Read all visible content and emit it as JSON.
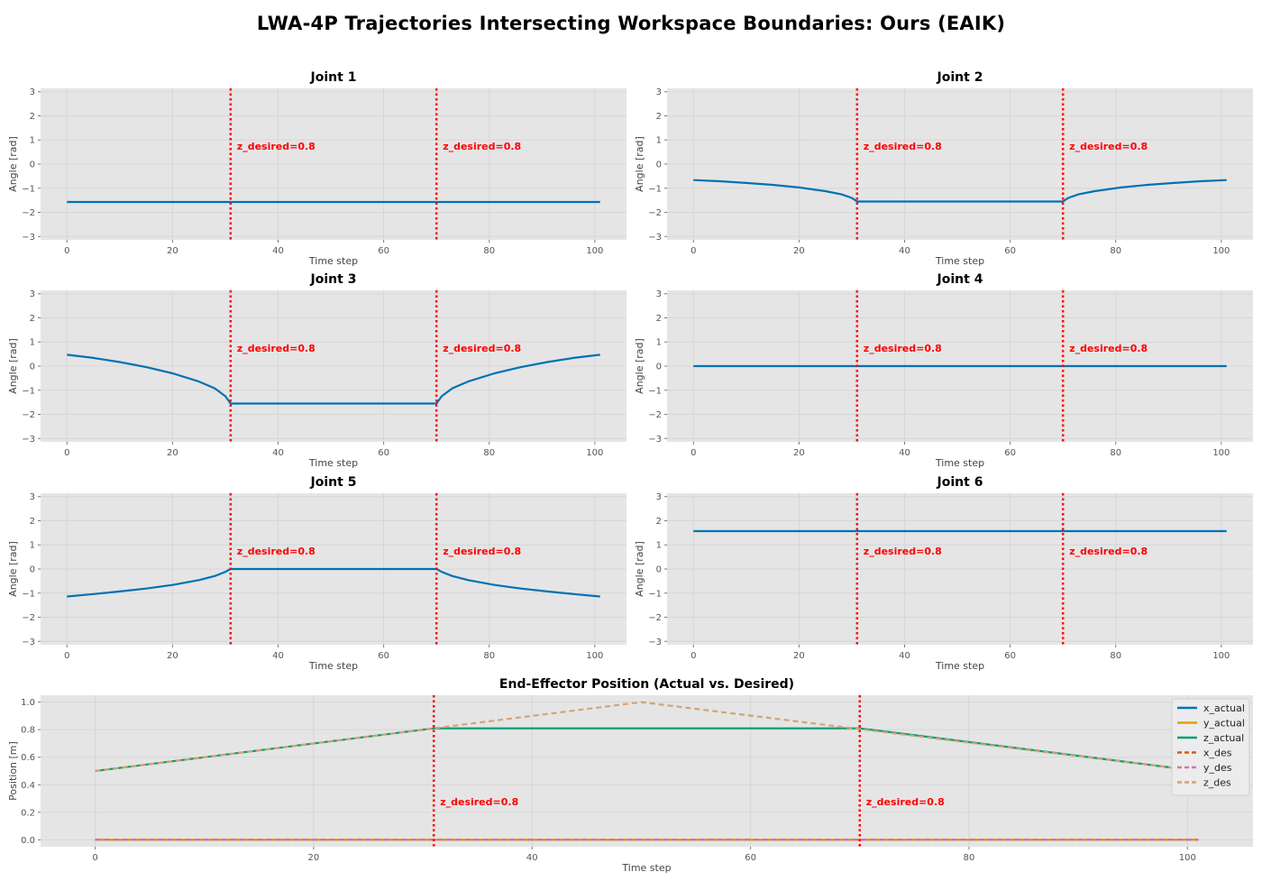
{
  "title": "LWA-4P Trajectories Intersecting Workspace Boundaries: Ours (EAIK)",
  "chart_data": [
    {
      "type": "line",
      "title": "Joint 1",
      "xlabel": "Time step",
      "ylabel": "Angle [rad]",
      "xlim": [
        -5,
        106
      ],
      "ylim": [
        -3.14,
        3.14
      ],
      "xticks": [
        0,
        20,
        40,
        60,
        80,
        100
      ],
      "yticks": [
        -3,
        -2,
        -1,
        0,
        1,
        2,
        3
      ],
      "grid": true,
      "vlines": [
        {
          "x": 31,
          "label": "z_desired=0.8"
        },
        {
          "x": 70,
          "label": "z_desired=0.8"
        }
      ],
      "series": [
        {
          "color": "#0072B2",
          "x": [
            0,
            31,
            70,
            101
          ],
          "y": [
            -1.57,
            -1.57,
            -1.57,
            -1.57
          ]
        }
      ]
    },
    {
      "type": "line",
      "title": "Joint 2",
      "xlabel": "Time step",
      "ylabel": "Angle [rad]",
      "xlim": [
        -5,
        106
      ],
      "ylim": [
        -3.14,
        3.14
      ],
      "xticks": [
        0,
        20,
        40,
        60,
        80,
        100
      ],
      "yticks": [
        -3,
        -2,
        -1,
        0,
        1,
        2,
        3
      ],
      "grid": true,
      "vlines": [
        {
          "x": 31,
          "label": "z_desired=0.8"
        },
        {
          "x": 70,
          "label": "z_desired=0.8"
        }
      ],
      "series": [
        {
          "color": "#0072B2",
          "x": [
            0,
            5,
            10,
            15,
            20,
            25,
            28,
            30,
            31,
            70,
            71,
            73,
            76,
            81,
            86,
            91,
            96,
            101
          ],
          "y": [
            -0.66,
            -0.71,
            -0.78,
            -0.86,
            -0.97,
            -1.12,
            -1.25,
            -1.4,
            -1.55,
            -1.55,
            -1.4,
            -1.25,
            -1.12,
            -0.97,
            -0.86,
            -0.78,
            -0.71,
            -0.66
          ]
        }
      ]
    },
    {
      "type": "line",
      "title": "Joint 3",
      "xlabel": "Time step",
      "ylabel": "Angle [rad]",
      "xlim": [
        -5,
        106
      ],
      "ylim": [
        -3.14,
        3.14
      ],
      "xticks": [
        0,
        20,
        40,
        60,
        80,
        100
      ],
      "yticks": [
        -3,
        -2,
        -1,
        0,
        1,
        2,
        3
      ],
      "grid": true,
      "vlines": [
        {
          "x": 31,
          "label": "z_desired=0.8"
        },
        {
          "x": 70,
          "label": "z_desired=0.8"
        }
      ],
      "series": [
        {
          "color": "#0072B2",
          "x": [
            0,
            5,
            10,
            15,
            20,
            25,
            28,
            30,
            31,
            70,
            71,
            73,
            76,
            81,
            86,
            91,
            96,
            101
          ],
          "y": [
            0.47,
            0.34,
            0.17,
            -0.04,
            -0.3,
            -0.64,
            -0.92,
            -1.25,
            -1.55,
            -1.55,
            -1.25,
            -0.92,
            -0.64,
            -0.3,
            -0.04,
            0.17,
            0.34,
            0.47
          ]
        }
      ]
    },
    {
      "type": "line",
      "title": "Joint 4",
      "xlabel": "Time step",
      "ylabel": "Angle [rad]",
      "xlim": [
        -5,
        106
      ],
      "ylim": [
        -3.14,
        3.14
      ],
      "xticks": [
        0,
        20,
        40,
        60,
        80,
        100
      ],
      "yticks": [
        -3,
        -2,
        -1,
        0,
        1,
        2,
        3
      ],
      "grid": true,
      "vlines": [
        {
          "x": 31,
          "label": "z_desired=0.8"
        },
        {
          "x": 70,
          "label": "z_desired=0.8"
        }
      ],
      "series": [
        {
          "color": "#0072B2",
          "x": [
            0,
            31,
            70,
            101
          ],
          "y": [
            0,
            0,
            0,
            0
          ]
        }
      ]
    },
    {
      "type": "line",
      "title": "Joint 5",
      "xlabel": "Time step",
      "ylabel": "Angle [rad]",
      "xlim": [
        -5,
        106
      ],
      "ylim": [
        -3.14,
        3.14
      ],
      "xticks": [
        0,
        20,
        40,
        60,
        80,
        100
      ],
      "yticks": [
        -3,
        -2,
        -1,
        0,
        1,
        2,
        3
      ],
      "grid": true,
      "vlines": [
        {
          "x": 31,
          "label": "z_desired=0.8"
        },
        {
          "x": 70,
          "label": "z_desired=0.8"
        }
      ],
      "series": [
        {
          "color": "#0072B2",
          "x": [
            0,
            5,
            10,
            15,
            20,
            25,
            28,
            30,
            31,
            70,
            71,
            73,
            76,
            81,
            86,
            91,
            96,
            101
          ],
          "y": [
            -1.14,
            -1.04,
            -0.93,
            -0.81,
            -0.66,
            -0.46,
            -0.29,
            -0.12,
            0.0,
            0.0,
            -0.12,
            -0.29,
            -0.46,
            -0.66,
            -0.81,
            -0.93,
            -1.04,
            -1.14
          ]
        }
      ]
    },
    {
      "type": "line",
      "title": "Joint 6",
      "xlabel": "Time step",
      "ylabel": "Angle [rad]",
      "xlim": [
        -5,
        106
      ],
      "ylim": [
        -3.14,
        3.14
      ],
      "xticks": [
        0,
        20,
        40,
        60,
        80,
        100
      ],
      "yticks": [
        -3,
        -2,
        -1,
        0,
        1,
        2,
        3
      ],
      "grid": true,
      "vlines": [
        {
          "x": 31,
          "label": "z_desired=0.8"
        },
        {
          "x": 70,
          "label": "z_desired=0.8"
        }
      ],
      "series": [
        {
          "color": "#0072B2",
          "x": [
            0,
            31,
            70,
            101
          ],
          "y": [
            1.57,
            1.57,
            1.57,
            1.57
          ]
        }
      ]
    },
    {
      "type": "line",
      "title": "End-Effector Position (Actual vs. Desired)",
      "xlabel": "Time step",
      "ylabel": "Position [m]",
      "xlim": [
        -5,
        106
      ],
      "ylim": [
        -0.05,
        1.05
      ],
      "xticks": [
        0,
        20,
        40,
        60,
        80,
        100
      ],
      "yticks": [
        0.0,
        0.2,
        0.4,
        0.6,
        0.8,
        1.0
      ],
      "grid": true,
      "legend": "top-right",
      "vlines": [
        {
          "x": 31,
          "label": "z_desired=0.8"
        },
        {
          "x": 70,
          "label": "z_desired=0.8"
        }
      ],
      "series": [
        {
          "name": "x_actual",
          "color": "#0072B2",
          "dash": false,
          "x": [
            0,
            101
          ],
          "y": [
            0.0,
            0.0
          ]
        },
        {
          "name": "y_actual",
          "color": "#E69F00",
          "dash": false,
          "x": [
            0,
            101
          ],
          "y": [
            0.0,
            0.0
          ]
        },
        {
          "name": "z_actual",
          "color": "#009E73",
          "dash": false,
          "x": [
            0,
            31,
            70,
            101
          ],
          "y": [
            0.5,
            0.81,
            0.81,
            0.5
          ]
        },
        {
          "name": "x_des",
          "color": "#D55E00",
          "dash": true,
          "x": [
            0,
            101
          ],
          "y": [
            0.0,
            0.0
          ]
        },
        {
          "name": "y_des",
          "color": "#CC79A7",
          "dash": true,
          "x": [
            0,
            101
          ],
          "y": [
            0.0,
            0.0
          ]
        },
        {
          "name": "z_des",
          "color": "#D4A373",
          "dash": true,
          "x": [
            0,
            50,
            101
          ],
          "y": [
            0.5,
            1.0,
            0.5
          ]
        }
      ]
    }
  ]
}
